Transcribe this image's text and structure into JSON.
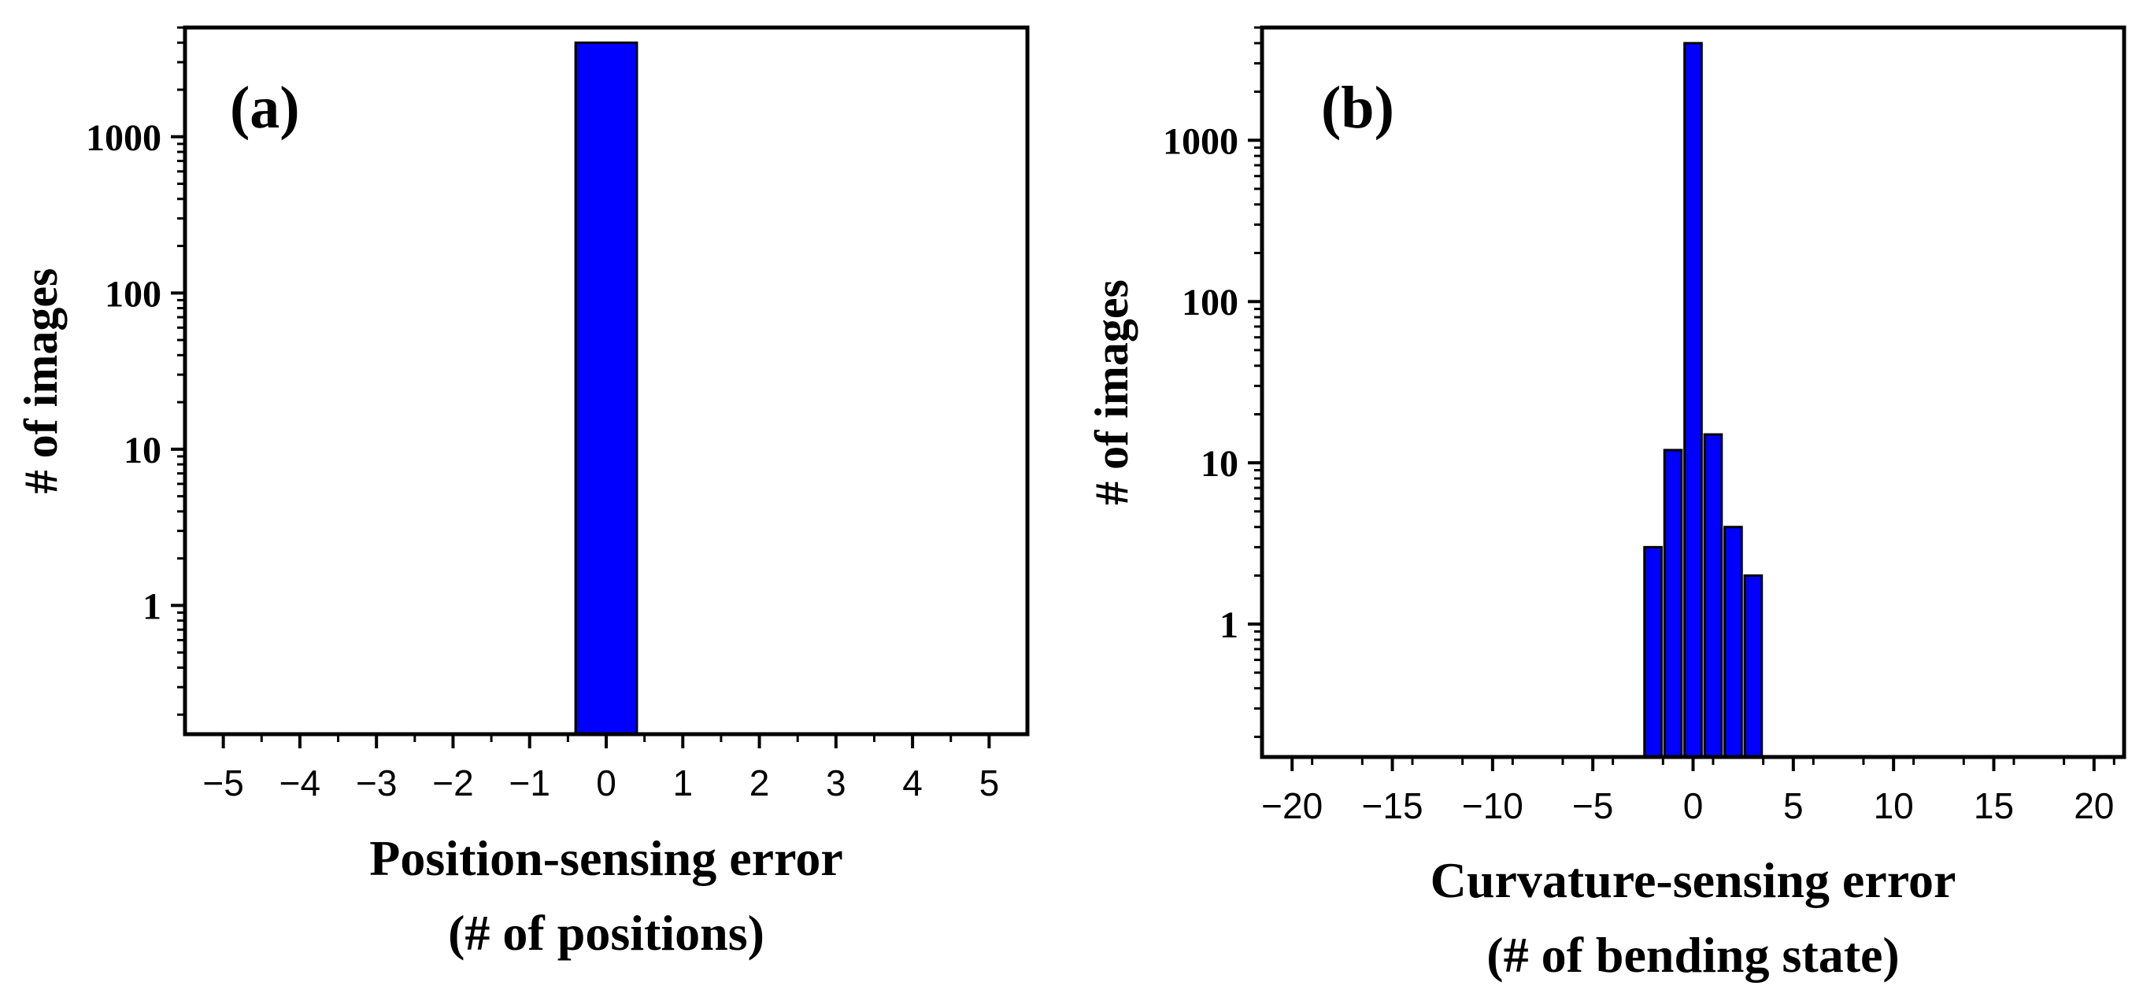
{
  "chart_data": [
    {
      "type": "bar",
      "panel_label": "(a)",
      "xlabel": "Position-sensing error",
      "xlabel_line2": "(# of positions)",
      "ylabel": "# of images",
      "yscale": "log",
      "xlim": [
        -5.5,
        5.5
      ],
      "ylim": [
        0.15,
        5000
      ],
      "xticks": [
        -5,
        -4,
        -3,
        -2,
        -1,
        0,
        1,
        2,
        3,
        4,
        5
      ],
      "xtick_labels": [
        "−5",
        "−4",
        "−3",
        "−2",
        "−1",
        "0",
        "1",
        "2",
        "3",
        "4",
        "5"
      ],
      "yticks": [
        1,
        10,
        100,
        1000
      ],
      "ytick_labels": [
        "1",
        "10",
        "100",
        "1000"
      ],
      "bar_width": 0.8,
      "x": [
        0
      ],
      "values": [
        4000
      ],
      "bar_color": "#0000ff"
    },
    {
      "type": "bar",
      "panel_label": "(b)",
      "xlabel": "Curvature-sensing error",
      "xlabel_line2": "(# of bending state)",
      "ylabel": "# of images",
      "yscale": "log",
      "xlim": [
        -21.5,
        21.5
      ],
      "ylim": [
        0.15,
        5000
      ],
      "xticks": [
        -20,
        -15,
        -10,
        -5,
        0,
        5,
        10,
        15,
        20
      ],
      "xtick_labels": [
        "−20",
        "−15",
        "−10",
        "−5",
        "0",
        "5",
        "10",
        "15",
        "20"
      ],
      "yticks": [
        1,
        10,
        100,
        1000
      ],
      "ytick_labels": [
        "1",
        "10",
        "100",
        "1000"
      ],
      "bar_width": 0.85,
      "x": [
        -2,
        -1,
        0,
        1,
        2,
        3
      ],
      "values": [
        3,
        12,
        4000,
        15,
        4,
        2
      ],
      "bar_color": "#0000ff"
    }
  ]
}
